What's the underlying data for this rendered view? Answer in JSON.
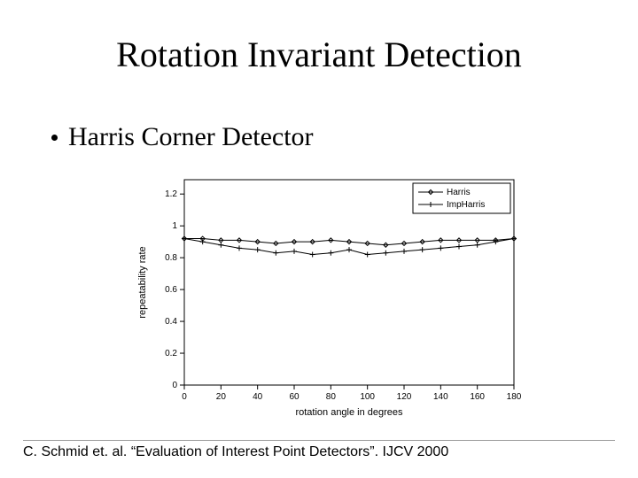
{
  "title": "Rotation Invariant Detection",
  "bullet": "Harris Corner Detector",
  "citation": "C. Schmid et. al. “Evaluation of Interest Point Detectors”. IJCV 2000",
  "chart": {
    "type": "line",
    "background_color": "#ffffff",
    "axis_color": "#000000",
    "tick_color": "#000000",
    "text_color": "#000000",
    "xlabel": "rotation angle in degrees",
    "ylabel": "repeatability rate",
    "label_fontsize": 11,
    "tick_fontsize": 10,
    "legend_fontsize": 10,
    "xlim": [
      0,
      180
    ],
    "ylim": [
      0,
      1.29
    ],
    "xticks": [
      0,
      20,
      40,
      60,
      80,
      100,
      120,
      140,
      160,
      180
    ],
    "yticks": [
      0,
      0.2,
      0.4,
      0.6,
      0.8,
      1,
      1.2
    ],
    "legend_box": true,
    "legend_position": "top-right",
    "series": [
      {
        "name": "Harris",
        "color": "#000000",
        "line_width": 1,
        "marker": "diamond",
        "marker_size": 5,
        "x": [
          0,
          10,
          20,
          30,
          40,
          50,
          60,
          70,
          80,
          90,
          100,
          110,
          120,
          130,
          140,
          150,
          160,
          170,
          180
        ],
        "y": [
          0.92,
          0.92,
          0.91,
          0.91,
          0.9,
          0.89,
          0.9,
          0.9,
          0.91,
          0.9,
          0.89,
          0.88,
          0.89,
          0.9,
          0.91,
          0.91,
          0.91,
          0.91,
          0.92
        ]
      },
      {
        "name": "ImpHarris",
        "color": "#000000",
        "line_width": 1,
        "marker": "plus",
        "marker_size": 6,
        "x": [
          0,
          10,
          20,
          30,
          40,
          50,
          60,
          70,
          80,
          90,
          100,
          110,
          120,
          130,
          140,
          150,
          160,
          170,
          180
        ],
        "y": [
          0.92,
          0.9,
          0.88,
          0.86,
          0.85,
          0.83,
          0.84,
          0.82,
          0.83,
          0.85,
          0.82,
          0.83,
          0.84,
          0.85,
          0.86,
          0.87,
          0.88,
          0.9,
          0.92
        ]
      }
    ]
  }
}
